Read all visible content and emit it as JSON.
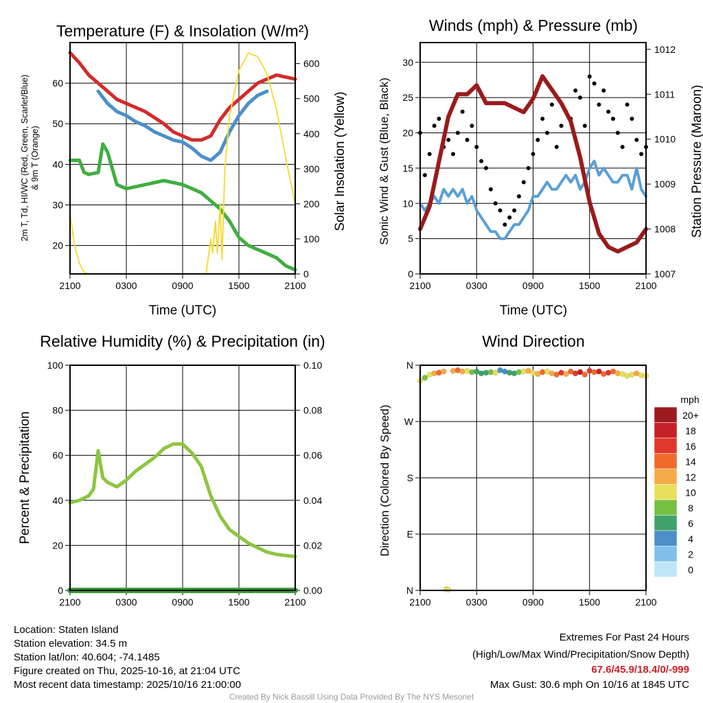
{
  "time_ticks": [
    "2100",
    "0300",
    "0900",
    "1500",
    "2100"
  ],
  "chart_data": [
    {
      "id": "temp",
      "type": "line",
      "title": "Temperature (F) & Insolation (W/m²)",
      "xlabel": "Time (UTC)",
      "ylabel": "2m T, Td, HI/WC (Red, Green, Scarlet/Blue)",
      "ylabel2": "& 9m T (Orange)",
      "y2label": "Solar Insolation (Yellow)",
      "xlim": [
        0,
        24
      ],
      "ylim": [
        13,
        70
      ],
      "y2lim": [
        0,
        660
      ],
      "yticks": [
        20,
        30,
        40,
        50,
        60
      ],
      "y2ticks": [
        0,
        100,
        200,
        300,
        400,
        500,
        600
      ],
      "series": [
        {
          "name": "2m Temperature",
          "color": "#d42a2a",
          "axis": "left",
          "x": [
            0,
            1,
            2,
            3,
            4,
            5,
            6,
            7,
            8,
            9,
            10,
            11,
            12,
            13,
            14,
            15,
            16,
            17,
            18,
            19,
            20,
            21,
            22,
            23,
            24
          ],
          "y": [
            67.5,
            65,
            62,
            60,
            58,
            56,
            55,
            54,
            53,
            51.5,
            50,
            48,
            47,
            46,
            46,
            47,
            51,
            54,
            56,
            58,
            60,
            61,
            62,
            61.5,
            61
          ]
        },
        {
          "name": "HI/WC",
          "color": "#4a8fcc",
          "axis": "left",
          "x": [
            3,
            4,
            5,
            6,
            7,
            8,
            9,
            10,
            11,
            12,
            13,
            14,
            15,
            16,
            17,
            18,
            19,
            20,
            21
          ],
          "y": [
            58,
            55,
            53,
            52,
            50.5,
            49.5,
            48,
            47,
            46,
            45.5,
            44,
            42,
            41,
            43,
            48,
            52,
            55,
            57,
            58
          ]
        },
        {
          "name": "Dewpoint",
          "color": "#3fae3f",
          "axis": "left",
          "x": [
            0,
            1,
            1.5,
            2,
            3,
            3.5,
            4,
            5,
            6,
            7,
            8,
            9,
            10,
            11,
            12,
            13,
            14,
            15,
            16,
            17,
            18,
            19,
            20,
            21,
            22,
            23,
            24
          ],
          "y": [
            41,
            41,
            38,
            37.5,
            38,
            45,
            43,
            35,
            34,
            34.5,
            35,
            35.5,
            36,
            35.5,
            35,
            34,
            33,
            31,
            29,
            26,
            22,
            20,
            19,
            18,
            17,
            15,
            14
          ]
        },
        {
          "name": "Solar Insolation",
          "color": "#f5dc3c",
          "axis": "right",
          "x": [
            0,
            0.5,
            1,
            1.5,
            2,
            14.5,
            14.8,
            15,
            15.2,
            15.5,
            15.7,
            16,
            16.2,
            16.5,
            17,
            18,
            19,
            20,
            21,
            22,
            23,
            24
          ],
          "y": [
            170,
            80,
            30,
            5,
            0,
            0,
            60,
            100,
            60,
            150,
            60,
            200,
            40,
            300,
            450,
            580,
            630,
            620,
            570,
            470,
            330,
            200
          ]
        }
      ]
    },
    {
      "id": "wind",
      "type": "line",
      "title": "Winds (mph) & Pressure (mb)",
      "xlabel": "Time (UTC)",
      "ylabel": "Sonic Wind & Gust (Blue, Black)",
      "y2label": "Station Pressure (Maroon)",
      "xlim": [
        0,
        24
      ],
      "ylim": [
        0,
        32.8
      ],
      "y2lim": [
        1007,
        1012.15
      ],
      "yticks": [
        0,
        5,
        10,
        15,
        20,
        25,
        30
      ],
      "y2ticks": [
        1007,
        1008,
        1009,
        1010,
        1011,
        1012
      ],
      "sustained": {
        "name": "Sonic Wind",
        "color": "#5a9fd6",
        "y": [
          10,
          9,
          10,
          11,
          10,
          12,
          11,
          12,
          11,
          12,
          10,
          11,
          9,
          8,
          7,
          6,
          6,
          5,
          5,
          6,
          7,
          7,
          8,
          9,
          11,
          11,
          12,
          13,
          12,
          12,
          13,
          14,
          13,
          14,
          12,
          13,
          15,
          16,
          14,
          15,
          14,
          13,
          13,
          14,
          14,
          12,
          15,
          12,
          11
        ]
      },
      "gust": {
        "name": "Gust",
        "color": "#000000",
        "y": [
          20,
          14,
          17,
          21,
          22,
          18,
          19,
          17,
          20,
          23,
          19,
          21,
          18,
          16,
          15,
          12,
          10,
          9,
          7,
          8,
          9,
          11,
          13,
          15,
          17,
          19,
          22,
          20,
          24,
          18,
          21,
          23,
          22,
          26,
          25,
          21,
          28,
          27,
          24,
          26,
          23,
          22,
          20,
          18,
          24,
          22,
          19,
          17,
          18
        ]
      },
      "pressure": {
        "name": "Station Pressure",
        "color": "#9a1b1b",
        "x": [
          0,
          1,
          2,
          3,
          4,
          5,
          6,
          7,
          8,
          9,
          10,
          11,
          12,
          13,
          14,
          15,
          16,
          17,
          18,
          19,
          20,
          21,
          22,
          23,
          24
        ],
        "y": [
          1008,
          1008.5,
          1009.5,
          1010.5,
          1011,
          1011,
          1011.2,
          1010.8,
          1010.8,
          1010.8,
          1010.7,
          1010.6,
          1010.9,
          1011.4,
          1011.1,
          1010.8,
          1010.4,
          1009.6,
          1008.6,
          1007.9,
          1007.6,
          1007.5,
          1007.6,
          1007.7,
          1008
        ]
      }
    },
    {
      "id": "rh",
      "type": "line",
      "title": "Relative Humidity (%) & Precipitation (in)",
      "ylabel": "Percent & Precipitation",
      "xlim": [
        0,
        24
      ],
      "ylim": [
        0,
        100
      ],
      "y2lim": [
        0,
        0.1
      ],
      "yticks": [
        0,
        20,
        40,
        60,
        80,
        100
      ],
      "y2ticks": [
        "0.00",
        "0.02",
        "0.04",
        "0.06",
        "0.08",
        "0.10"
      ],
      "series": [
        {
          "name": "Relative Humidity",
          "color": "#8cc63f",
          "x": [
            0,
            1,
            2,
            2.5,
            3,
            3.5,
            4,
            5,
            6,
            7,
            8,
            9,
            10,
            11,
            12,
            13,
            14,
            15,
            16,
            17,
            18,
            19,
            20,
            21,
            22,
            24
          ],
          "y": [
            39,
            40,
            42,
            45,
            62,
            50,
            48,
            46,
            49,
            53,
            56,
            59,
            63,
            65,
            65,
            61,
            55,
            42,
            33,
            27,
            24,
            21,
            19,
            17,
            16,
            15
          ]
        },
        {
          "name": "Precipitation",
          "color": "#3a9a3a",
          "x": [
            0,
            24
          ],
          "y": [
            0,
            0
          ]
        }
      ]
    },
    {
      "id": "dir",
      "type": "scatter",
      "title": "Wind Direction",
      "ylabel": "Direction (Colored By Speed)",
      "xlim": [
        0,
        24
      ],
      "ylim": [
        0,
        360
      ],
      "yticks": [
        {
          "v": 0,
          "l": "N"
        },
        {
          "v": 90,
          "l": "E"
        },
        {
          "v": 180,
          "l": "S"
        },
        {
          "v": 270,
          "l": "W"
        },
        {
          "v": 360,
          "l": "N"
        }
      ],
      "points": [
        [
          0,
          335,
          10
        ],
        [
          0.5,
          340,
          9
        ],
        [
          1,
          345,
          11
        ],
        [
          1.5,
          347,
          12
        ],
        [
          2,
          348,
          14
        ],
        [
          2.5,
          350,
          13
        ],
        [
          2.75,
          2,
          10
        ],
        [
          3,
          1,
          10
        ],
        [
          3.5,
          351,
          12
        ],
        [
          4,
          352,
          14
        ],
        [
          4.5,
          350,
          12
        ],
        [
          5,
          351,
          10
        ],
        [
          5.5,
          349,
          8
        ],
        [
          6,
          350,
          6
        ],
        [
          6.5,
          347,
          7
        ],
        [
          7,
          348,
          6
        ],
        [
          7.5,
          349,
          8
        ],
        [
          8,
          348,
          10
        ],
        [
          8.5,
          352,
          4
        ],
        [
          9,
          350,
          5
        ],
        [
          9.5,
          348,
          6
        ],
        [
          10,
          347,
          7
        ],
        [
          10.5,
          349,
          8
        ],
        [
          11,
          350,
          10
        ],
        [
          11.5,
          351,
          12
        ],
        [
          12,
          348,
          10
        ],
        [
          12.5,
          346,
          12
        ],
        [
          13,
          349,
          14
        ],
        [
          13.5,
          350,
          10
        ],
        [
          14,
          347,
          12
        ],
        [
          14.5,
          345,
          14
        ],
        [
          15,
          348,
          16
        ],
        [
          15.5,
          346,
          12
        ],
        [
          16,
          350,
          14
        ],
        [
          16.5,
          347,
          16
        ],
        [
          17,
          349,
          18
        ],
        [
          17.5,
          345,
          15
        ],
        [
          18,
          351,
          16
        ],
        [
          18.5,
          349,
          14
        ],
        [
          19,
          350,
          18
        ],
        [
          19.5,
          346,
          15
        ],
        [
          20,
          348,
          16
        ],
        [
          20.5,
          350,
          14
        ],
        [
          21,
          347,
          12
        ],
        [
          21.5,
          346,
          10
        ],
        [
          22,
          343,
          10
        ],
        [
          22.5,
          345,
          11
        ],
        [
          23,
          347,
          12
        ],
        [
          23.5,
          344,
          10
        ],
        [
          24,
          343,
          10
        ]
      ],
      "colorbar": {
        "title": "mph",
        "levels": [
          "20+",
          "18",
          "16",
          "14",
          "12",
          "10",
          "8",
          "6",
          "4",
          "2",
          "0"
        ],
        "colors": [
          "#9b1b1e",
          "#c62026",
          "#e0392c",
          "#f06a2c",
          "#f6ab48",
          "#e8df5a",
          "#74c043",
          "#3fa36b",
          "#4a8fc9",
          "#7fbfea",
          "#bfe6f8"
        ]
      }
    }
  ],
  "footer": {
    "location": "Location: Staten Island",
    "elevation": "Station elevation: 34.5 m",
    "latlon": "Station lat/lon: 40.604; -74.1485",
    "created": "Figure created on Thu, 2025-10-16, at 21:04 UTC",
    "recent": "Most recent data timestamp: 2025/10/16 21:00:00",
    "extremes_title": "Extremes For Past 24 Hours",
    "extremes_sub": "(High/Low/Max Wind/Precipitation/Snow Depth)",
    "extremes_values": "67.6/45.9/18.4/0/-999",
    "max_gust": "Max Gust: 30.6 mph On 10/16 at 1845 UTC",
    "credit": "Created By Nick Bassill Using Data Provided By The NYS Mesonet"
  }
}
